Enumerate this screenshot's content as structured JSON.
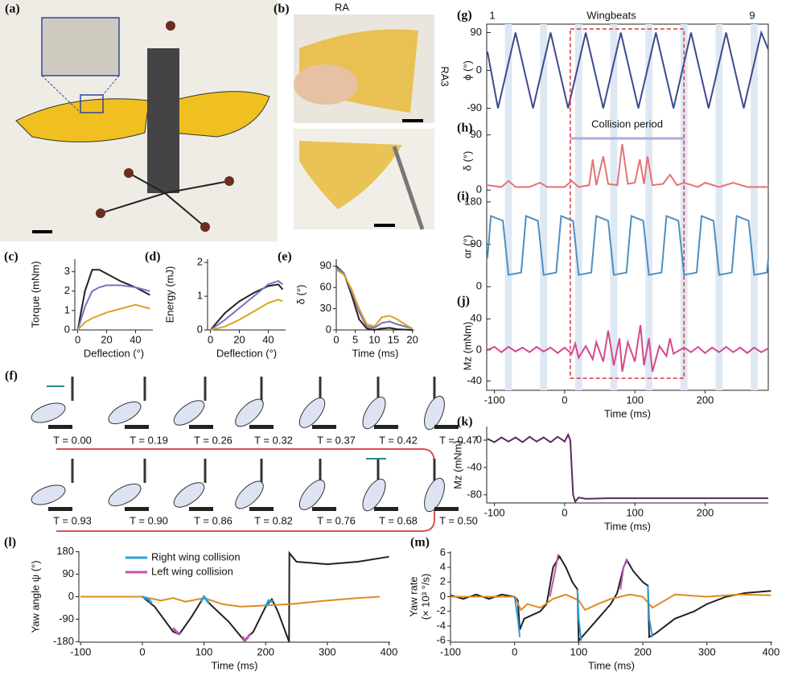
{
  "figure": {
    "panel_a": "(a)",
    "panel_b": "(b)",
    "panel_f": "(f)",
    "photo_b_labels": [
      "RA",
      "RA3"
    ],
    "frames": [
      "T = 0.00",
      "T = 0.19",
      "T = 0.26",
      "T = 0.32",
      "T = 0.37",
      "T = 0.42",
      "T = 0.47",
      "T = 0.93",
      "T = 0.90",
      "T = 0.86",
      "T = 0.82",
      "T = 0.76",
      "T = 0.68",
      "T = 0.50"
    ]
  },
  "chart_data": [
    {
      "type": "line",
      "panel": "(c)",
      "ylabel": "Torque (mNm)",
      "xlabel": "Deflection (°)",
      "xlim": [
        -2,
        52
      ],
      "ylim": [
        0,
        3.65
      ],
      "xticks": [
        0,
        20,
        40
      ],
      "yticks": [
        0,
        1,
        2,
        3
      ],
      "series": [
        {
          "color": "#222222",
          "x": [
            0,
            5,
            10,
            15,
            20,
            30,
            40,
            50
          ],
          "values": [
            0,
            2,
            3.1,
            3.1,
            2.9,
            2.5,
            2.2,
            1.8
          ]
        },
        {
          "color": "#7b6fc0",
          "x": [
            0,
            5,
            10,
            15,
            20,
            30,
            40,
            50
          ],
          "values": [
            0,
            1.2,
            2,
            2.2,
            2.3,
            2.3,
            2.2,
            2.0
          ]
        },
        {
          "color": "#d9a520",
          "x": [
            0,
            5,
            10,
            20,
            30,
            40,
            50
          ],
          "values": [
            0,
            0.4,
            0.6,
            0.9,
            1.1,
            1.3,
            1.1
          ]
        }
      ]
    },
    {
      "type": "line",
      "panel": "(d)",
      "ylabel": "Energy (mJ)",
      "xlabel": "Deflection (°)",
      "xlim": [
        -2,
        52
      ],
      "ylim": [
        0,
        2.1
      ],
      "xticks": [
        0,
        20,
        40
      ],
      "yticks": [
        0,
        1,
        2
      ],
      "series": [
        {
          "color": "#222222",
          "x": [
            0,
            10,
            20,
            30,
            40,
            47,
            50
          ],
          "values": [
            0,
            0.5,
            0.85,
            1.1,
            1.3,
            1.35,
            1.2
          ]
        },
        {
          "color": "#7b6fc0",
          "x": [
            0,
            10,
            20,
            30,
            40,
            47,
            50
          ],
          "values": [
            0,
            0.3,
            0.65,
            1.0,
            1.35,
            1.45,
            1.35
          ]
        },
        {
          "color": "#d9a520",
          "x": [
            0,
            10,
            20,
            30,
            40,
            47,
            50
          ],
          "values": [
            0,
            0.1,
            0.3,
            0.55,
            0.8,
            0.9,
            0.85
          ]
        }
      ]
    },
    {
      "type": "line",
      "panel": "(e)",
      "ylabel": "δ (°)",
      "xlabel": "Time (ms)",
      "xlim": [
        0,
        20.5
      ],
      "ylim": [
        0,
        100
      ],
      "xticks": [
        0,
        5,
        10,
        15,
        20
      ],
      "yticks": [
        0,
        30,
        60,
        90
      ],
      "series": [
        {
          "color": "#222222",
          "x": [
            0,
            2,
            4,
            6,
            8,
            10,
            12,
            14,
            16,
            20
          ],
          "values": [
            90,
            80,
            50,
            15,
            2,
            0,
            2,
            3,
            1,
            0
          ]
        },
        {
          "color": "#7b6fc0",
          "x": [
            0,
            2,
            4,
            6,
            8,
            10,
            12,
            14,
            16,
            20
          ],
          "values": [
            88,
            80,
            55,
            25,
            5,
            3,
            10,
            12,
            8,
            2
          ]
        },
        {
          "color": "#d9a520",
          "x": [
            0,
            2,
            4,
            6,
            8,
            10,
            12,
            14,
            16,
            18,
            20
          ],
          "values": [
            85,
            78,
            58,
            30,
            8,
            5,
            18,
            20,
            15,
            8,
            2
          ]
        }
      ]
    },
    {
      "type": "line",
      "panel": "(g)",
      "ylabel": "ϕ (°)",
      "xlim": [
        -111,
        290
      ],
      "ylim": [
        -110,
        110
      ],
      "yticks": [
        -90,
        0,
        90
      ],
      "top_labels": [
        "1",
        "Wingbeats",
        "9"
      ],
      "collision_period": [
        8,
        170
      ],
      "shading": [
        [
          -85,
          -75
        ],
        [
          -35,
          -25
        ],
        [
          15,
          25
        ],
        [
          65,
          75
        ],
        [
          115,
          125
        ],
        [
          165,
          175
        ],
        [
          215,
          225
        ],
        [
          265,
          275
        ]
      ],
      "series": [
        {
          "color": "#3d4a8c",
          "x": [
            -110,
            -95,
            -82.5,
            -70,
            -57.5,
            -45,
            -32.5,
            -20,
            -7.5,
            5,
            17.5,
            30,
            42.5,
            55,
            67.5,
            80,
            92.5,
            105,
            117.5,
            130,
            142.5,
            155,
            167.5,
            180,
            192.5,
            205,
            217.5,
            230,
            242.5,
            255,
            267.5,
            280,
            290
          ],
          "values": [
            45,
            -90,
            0,
            90,
            0,
            -90,
            0,
            90,
            0,
            -90,
            0,
            90,
            0,
            -90,
            0,
            90,
            0,
            -90,
            0,
            90,
            0,
            -90,
            0,
            90,
            0,
            -90,
            0,
            90,
            0,
            -90,
            0,
            90,
            50
          ]
        }
      ]
    },
    {
      "type": "line",
      "panel": "(h)",
      "ylabel": "δ (°)",
      "xlim": [
        -111,
        290
      ],
      "ylim": [
        -5,
        100
      ],
      "yticks": [
        0,
        90
      ],
      "annotation": "Collision period",
      "series": [
        {
          "color": "#e57373",
          "x": [
            -110,
            -90,
            -80,
            -70,
            -50,
            -35,
            -25,
            0,
            10,
            20,
            35,
            40,
            45,
            55,
            62,
            75,
            82,
            90,
            100,
            107,
            113,
            118,
            125,
            140,
            150,
            160,
            170,
            190,
            200,
            220,
            240,
            260,
            290
          ],
          "values": [
            8,
            5,
            15,
            5,
            5,
            12,
            5,
            5,
            15,
            5,
            8,
            50,
            8,
            55,
            10,
            8,
            75,
            10,
            12,
            50,
            10,
            55,
            8,
            10,
            25,
            8,
            12,
            5,
            12,
            5,
            12,
            5,
            5
          ]
        }
      ]
    },
    {
      "type": "line",
      "panel": "(i)",
      "ylabel": "αr (°)",
      "xlim": [
        -111,
        290
      ],
      "ylim": [
        -20,
        190
      ],
      "yticks": [
        0,
        90,
        180
      ],
      "series": [
        {
          "color": "#4f8fc0",
          "x": [
            -110,
            -105,
            -88,
            -80,
            -62,
            -55,
            -38,
            -30,
            -12,
            -5,
            12,
            20,
            38,
            45,
            62,
            70,
            88,
            95,
            112,
            120,
            138,
            145,
            162,
            170,
            188,
            195,
            212,
            220,
            238,
            245,
            262,
            270,
            288,
            290
          ],
          "values": [
            60,
            150,
            140,
            25,
            30,
            150,
            140,
            25,
            30,
            150,
            140,
            25,
            30,
            150,
            140,
            25,
            30,
            150,
            140,
            25,
            30,
            150,
            140,
            25,
            30,
            150,
            140,
            25,
            30,
            150,
            140,
            25,
            30,
            60
          ]
        }
      ]
    },
    {
      "type": "line",
      "panel": "(j)",
      "ylabel": "Mz (mNm)",
      "xlabel": "Time (ms)",
      "xlim": [
        -111,
        290
      ],
      "ylim": [
        -52,
        62
      ],
      "xticks": [
        -100,
        0,
        100,
        200
      ],
      "yticks": [
        -40,
        0,
        40
      ],
      "series": [
        {
          "color": "#d4488f",
          "x": [
            -110,
            -100,
            -90,
            -80,
            -70,
            -60,
            -50,
            -40,
            -30,
            -20,
            -10,
            0,
            10,
            15,
            20,
            30,
            40,
            45,
            55,
            62,
            70,
            78,
            82,
            90,
            100,
            108,
            113,
            120,
            125,
            135,
            145,
            150,
            155,
            170,
            180,
            190,
            200,
            210,
            220,
            230,
            240,
            250,
            260,
            270,
            280,
            290
          ],
          "values": [
            0,
            4,
            -3,
            4,
            -2,
            3,
            -3,
            4,
            -2,
            3,
            -4,
            3,
            -5,
            8,
            -10,
            5,
            -12,
            10,
            -15,
            25,
            -20,
            15,
            -28,
            10,
            -15,
            32,
            -20,
            15,
            -28,
            5,
            -8,
            15,
            -5,
            3,
            -3,
            4,
            -4,
            3,
            -3,
            4,
            -3,
            3,
            -4,
            3,
            -3,
            2
          ]
        }
      ]
    },
    {
      "type": "line",
      "panel": "(k)",
      "ylabel": "Mz (mNm)",
      "xlabel": "Time (ms)",
      "xlim": [
        -111,
        290
      ],
      "ylim": [
        -92,
        20
      ],
      "xticks": [
        -100,
        0,
        100,
        200
      ],
      "yticks": [
        -80,
        -40,
        0
      ],
      "series": [
        {
          "color": "#5a2a5e",
          "x": [
            -110,
            -100,
            -90,
            -80,
            -70,
            -60,
            -50,
            -40,
            -30,
            -20,
            -10,
            0,
            5,
            8,
            12,
            15,
            20,
            30,
            60,
            100,
            290
          ],
          "values": [
            2,
            -3,
            4,
            -2,
            4,
            -3,
            5,
            -2,
            4,
            -3,
            5,
            -2,
            8,
            0,
            -80,
            -90,
            -84,
            -86,
            -85,
            -85,
            -85
          ]
        }
      ]
    },
    {
      "type": "line",
      "panel": "(l)",
      "ylabel": "Yaw angle ψ (°)",
      "xlabel": "Time (ms)",
      "xlim": [
        -103,
        402
      ],
      "ylim": [
        -182,
        182
      ],
      "xticks": [
        -100,
        0,
        100,
        200,
        300,
        400
      ],
      "yticks": [
        -180,
        -90,
        0,
        90,
        180
      ],
      "series": [
        {
          "color": "#222222",
          "x": [
            -100,
            0,
            20,
            50,
            60,
            80,
            100,
            110,
            140,
            165,
            180,
            200,
            210,
            220,
            238,
            238.5,
            250,
            300,
            350,
            400
          ],
          "values": [
            0,
            0,
            -40,
            -140,
            -150,
            -80,
            0,
            -30,
            -100,
            -175,
            -140,
            -40,
            -10,
            -60,
            -180,
            175,
            140,
            130,
            140,
            160
          ]
        },
        {
          "color": "#e08a1e",
          "x": [
            -100,
            0,
            30,
            50,
            70,
            100,
            130,
            160,
            200,
            240,
            300,
            350,
            385
          ],
          "values": [
            0,
            0,
            -15,
            -5,
            -20,
            -5,
            -30,
            -40,
            -35,
            -30,
            -15,
            -5,
            0
          ]
        },
        {
          "name": "Right wing collision",
          "color": "#2aa0d8",
          "x": [
            0,
            10,
            15,
            50,
            95,
            100,
            108,
            150,
            200,
            205,
            212
          ],
          "values": [
            0,
            -10,
            -25,
            null,
            -20,
            0,
            -25,
            null,
            -40,
            -15,
            -20
          ]
        },
        {
          "name": "Left wing collision",
          "color": "#c055b0",
          "x": [
            50,
            55,
            62,
            100,
            162,
            167,
            175
          ],
          "values": [
            -125,
            -140,
            -150,
            null,
            -160,
            -175,
            -150
          ]
        }
      ]
    },
    {
      "type": "line",
      "panel": "(m)",
      "ylabel": [
        "Yaw rate",
        "(× 10³ °/s)"
      ],
      "xlabel": "Time (ms)",
      "xlim": [
        -100,
        402
      ],
      "ylim": [
        -6.2,
        6.2
      ],
      "xticks": [
        -100,
        0,
        100,
        200,
        300,
        400
      ],
      "yticks": [
        -6,
        -4,
        -2,
        0,
        2,
        4,
        6
      ],
      "series": [
        {
          "color": "#222222",
          "x": [
            -100,
            -80,
            -60,
            -40,
            -20,
            0,
            5,
            8,
            15,
            40,
            50,
            60,
            70,
            80,
            90,
            98,
            100,
            110,
            130,
            150,
            160,
            170,
            175,
            185,
            200,
            208,
            210,
            220,
            250,
            280,
            300,
            330,
            360,
            400
          ],
          "values": [
            0.2,
            -0.3,
            0.3,
            -0.3,
            0.3,
            0,
            -0.5,
            -4.5,
            -3,
            -2,
            -1,
            4,
            5.5,
            4,
            2,
            1,
            -6,
            -5,
            -3,
            -1,
            0.5,
            4,
            5,
            3.5,
            2,
            1.5,
            -5.5,
            -5,
            -3,
            -2,
            -1,
            0,
            0.5,
            0.8
          ]
        },
        {
          "color": "#e08a1e",
          "x": [
            -100,
            0,
            10,
            20,
            40,
            60,
            80,
            100,
            110,
            130,
            150,
            180,
            200,
            215,
            250,
            300,
            350,
            400
          ],
          "values": [
            0,
            0,
            -1.8,
            -1,
            -1.5,
            -0.3,
            0.3,
            -0.5,
            -1.8,
            -1,
            -0.3,
            0.3,
            0,
            -1.5,
            0.3,
            0,
            0.3,
            0.2
          ]
        },
        {
          "color": "#2aa0d8",
          "x": [
            0,
            5,
            8,
            50,
            98,
            100,
            104,
            150,
            208,
            210,
            215
          ],
          "values": [
            0,
            -3,
            -5.5,
            null,
            1,
            -3,
            -6,
            null,
            1.5,
            -3,
            -5.5
          ]
        },
        {
          "color": "#c055b0",
          "x": [
            55,
            62,
            68,
            120,
            165,
            170,
            176
          ],
          "values": [
            0,
            3,
            5.8,
            null,
            1,
            4,
            5
          ]
        }
      ]
    }
  ]
}
